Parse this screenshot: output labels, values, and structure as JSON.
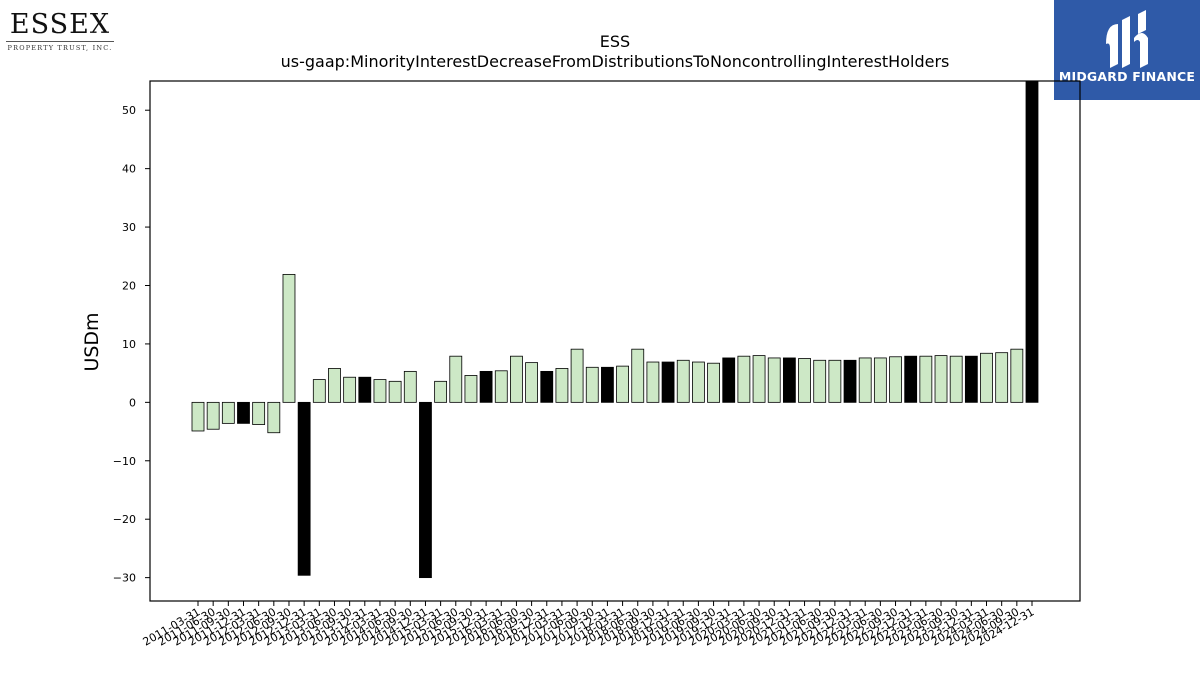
{
  "logos": {
    "left": {
      "name": "ESSEX",
      "tagline": "PROPERTY TRUST, INC."
    },
    "right": {
      "name": "MIDGARD FINANCE",
      "color": "#2f5aa8"
    }
  },
  "chart_data": {
    "type": "bar",
    "title": "ESS",
    "subtitle": "us-gaap:MinorityInterestDecreaseFromDistributionsToNoncontrollingInterestHolders",
    "xlabel": "",
    "ylabel": "USDm",
    "ylim": [
      -34,
      55
    ],
    "yticks": [
      -30,
      -20,
      -10,
      0,
      10,
      20,
      30,
      40,
      50
    ],
    "grid": false,
    "legend": "none",
    "colors": {
      "quarter": "#cde8c6",
      "fiscal_year_end": "#000000",
      "edge": "#000000"
    },
    "categories": [
      "2011-03-31",
      "2011-06-30",
      "2011-09-30",
      "2011-12-31",
      "2012-03-31",
      "2012-06-30",
      "2012-09-30",
      "2012-12-31",
      "2013-03-31",
      "2013-06-30",
      "2013-09-30",
      "2013-12-31",
      "2014-03-31",
      "2014-06-30",
      "2014-09-30",
      "2014-12-31",
      "2015-03-31",
      "2015-06-30",
      "2015-09-30",
      "2015-12-31",
      "2016-03-31",
      "2016-06-30",
      "2016-09-30",
      "2016-12-31",
      "2017-03-31",
      "2017-06-30",
      "2017-09-30",
      "2017-12-31",
      "2018-03-31",
      "2018-06-30",
      "2018-09-30",
      "2018-12-31",
      "2019-03-31",
      "2019-06-30",
      "2019-09-30",
      "2019-12-31",
      "2020-03-31",
      "2020-06-30",
      "2020-09-30",
      "2020-12-31",
      "2021-03-31",
      "2021-06-30",
      "2021-09-30",
      "2021-12-31",
      "2022-03-31",
      "2022-06-30",
      "2022-09-30",
      "2022-12-31",
      "2023-03-31",
      "2023-06-30",
      "2023-09-30",
      "2023-12-31",
      "2024-03-31",
      "2024-06-30",
      "2024-09-30",
      "2024-12-31"
    ],
    "values": [
      -4.9,
      -4.6,
      -3.6,
      -3.6,
      -3.8,
      -5.2,
      21.9,
      -29.6,
      3.9,
      5.8,
      4.3,
      4.3,
      3.9,
      3.6,
      5.3,
      -30.0,
      3.6,
      7.9,
      4.6,
      5.3,
      5.4,
      7.9,
      6.8,
      5.3,
      5.8,
      9.1,
      6.0,
      6.0,
      6.2,
      9.1,
      6.9,
      6.9,
      7.2,
      6.9,
      6.7,
      7.6,
      7.9,
      8.0,
      7.6,
      7.6,
      7.5,
      7.2,
      7.2,
      7.2,
      7.6,
      7.6,
      7.8,
      7.9,
      7.9,
      8.0,
      7.9,
      7.9,
      8.4,
      8.5,
      9.1,
      55.0
    ],
    "highlight": [
      false,
      false,
      false,
      true,
      false,
      false,
      false,
      true,
      false,
      false,
      false,
      true,
      false,
      false,
      false,
      true,
      false,
      false,
      false,
      true,
      false,
      false,
      false,
      true,
      false,
      false,
      false,
      true,
      false,
      false,
      false,
      true,
      false,
      false,
      false,
      true,
      false,
      false,
      false,
      true,
      false,
      false,
      false,
      true,
      false,
      false,
      false,
      true,
      false,
      false,
      false,
      true,
      false,
      false,
      false,
      true
    ]
  }
}
